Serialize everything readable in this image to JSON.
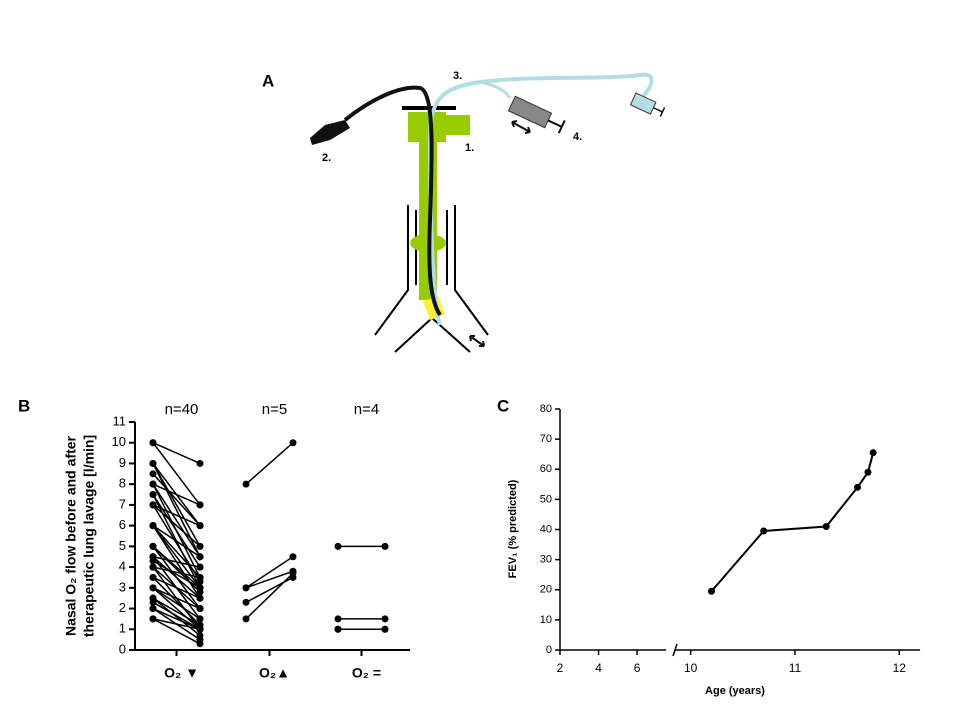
{
  "panel_a": {
    "label": "A",
    "annotations": [
      "1.",
      "2.",
      "3.",
      "4."
    ]
  },
  "chart_data": [
    {
      "type": "paired",
      "panel_label": "B",
      "ylabel": [
        "Nasal O₂ flow before and after",
        "therapeutic lung lavage [l/min]"
      ],
      "ylim": [
        0,
        11
      ],
      "yticks": [
        0,
        1,
        2,
        3,
        4,
        5,
        6,
        7,
        8,
        9,
        10,
        11
      ],
      "groups": [
        {
          "n_label": "n=40",
          "category": "O₂ ▼",
          "before": [
            10,
            10,
            9,
            9,
            9,
            8.5,
            8,
            8,
            8,
            7.5,
            7.5,
            7,
            7,
            7,
            6,
            6,
            6,
            6,
            5,
            5,
            5,
            4.5,
            4.5,
            4.5,
            4.3,
            4,
            4,
            4,
            3.5,
            3.5,
            3,
            3,
            3,
            2.5,
            2.5,
            2.3,
            2,
            2,
            1.5,
            1.5
          ],
          "after": [
            9,
            7,
            6,
            5,
            4.5,
            6,
            7,
            4.5,
            3.5,
            4,
            3,
            6,
            5,
            3.3,
            4.5,
            3.5,
            3,
            2.5,
            3,
            2.8,
            2,
            4,
            2.5,
            1.5,
            3,
            3.5,
            2,
            1,
            2.5,
            1.2,
            2,
            1.5,
            1,
            1.2,
            0.7,
            1,
            1,
            0.5,
            1,
            0.3
          ]
        },
        {
          "n_label": "n=5",
          "category": "O₂▲",
          "before": [
            8,
            3,
            3,
            2.3,
            1.5
          ],
          "after": [
            10,
            4.5,
            3.8,
            3.5,
            3.7
          ]
        },
        {
          "n_label": "n=4",
          "category": "O₂ =",
          "before": [
            5,
            1.5,
            1,
            1
          ],
          "after": [
            5,
            1.5,
            1,
            1
          ]
        }
      ]
    },
    {
      "type": "line",
      "panel_label": "C",
      "ylabel": "FEV₁ (% predicted)",
      "xlabel": "Age (years)",
      "x": [
        10.2,
        10.7,
        11.3,
        11.6,
        11.7,
        11.75
      ],
      "values": [
        19.5,
        39.5,
        41,
        54,
        59,
        65.5
      ],
      "xlim": [
        2,
        12.2
      ],
      "axis_break": [
        7.5,
        9.85
      ],
      "xticks": [
        2,
        4,
        6,
        10,
        11,
        12
      ],
      "ylim": [
        0,
        80
      ],
      "yticks": [
        0,
        10,
        20,
        30,
        40,
        50,
        60,
        70,
        80
      ]
    }
  ]
}
